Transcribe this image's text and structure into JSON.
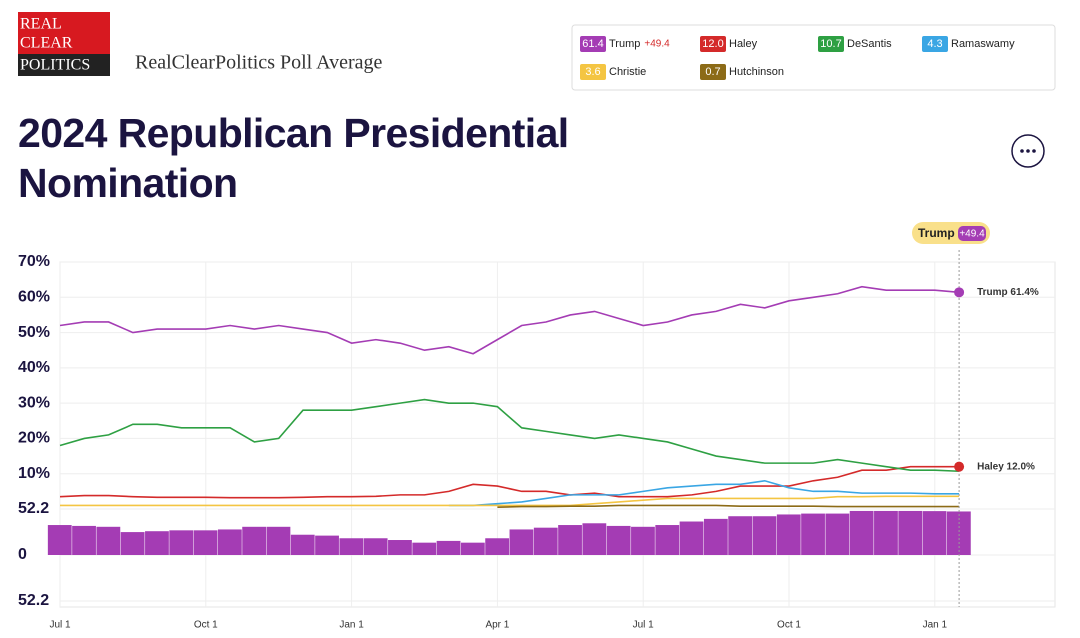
{
  "logo": [
    "REAL",
    "CLEAR",
    "POLITICS"
  ],
  "subtitle": "RealClearPolitics Poll Average",
  "legend": {
    "values": [
      "61.4",
      "12.0",
      "10.7",
      "4.3",
      "3.6",
      "0.7"
    ],
    "spread": "+49.4"
  },
  "badge": {
    "name": "Trump",
    "spread": "+49.4"
  },
  "chart_data": [
    {
      "type": "line",
      "title": "2024 Republican Presidential Nomination",
      "categories": [
        "Jul 1",
        null,
        null,
        null,
        null,
        null,
        "Oct 1",
        null,
        null,
        null,
        null,
        null,
        "Jan 1",
        null,
        null,
        null,
        null,
        null,
        "Apr 1",
        null,
        null,
        null,
        null,
        null,
        "Jul 1",
        null,
        null,
        null,
        null,
        null,
        "Oct 1",
        null,
        null,
        null,
        null,
        null,
        "Jan 1",
        null
      ],
      "series": [
        {
          "name": "Trump",
          "color": "#a43cb4",
          "values": [
            52,
            53,
            53,
            50,
            51,
            51,
            51,
            52,
            51,
            52,
            51,
            50,
            47,
            48,
            47,
            45,
            46,
            44,
            48,
            52,
            53,
            55,
            56,
            54,
            52,
            53,
            55,
            56,
            58,
            57,
            59,
            60,
            61,
            63,
            62,
            62,
            62,
            61.4
          ]
        },
        {
          "name": "Haley",
          "color": "#d42a2a",
          "values": [
            3.5,
            3.8,
            3.8,
            3.5,
            3.3,
            3.3,
            3.3,
            3.2,
            3.2,
            3.2,
            3.3,
            3.5,
            3.5,
            3.6,
            4,
            4,
            5,
            7,
            6.5,
            5,
            5,
            4,
            4.5,
            3.5,
            3.5,
            3.5,
            4,
            5,
            6.5,
            6.5,
            6.5,
            8,
            9,
            11,
            11,
            12,
            12,
            12.0
          ]
        },
        {
          "name": "DeSantis",
          "color": "#2ea043",
          "values": [
            18,
            20,
            21,
            24,
            24,
            23,
            23,
            23,
            19,
            20,
            28,
            28,
            28,
            29,
            30,
            31,
            30,
            30,
            29,
            23,
            22,
            21,
            20,
            21,
            20,
            19,
            17,
            15,
            14,
            13,
            13,
            13,
            14,
            13,
            12,
            11,
            11,
            10.7
          ]
        },
        {
          "name": "Ramaswamy",
          "color": "#3aa6e4",
          "values": [
            null,
            null,
            null,
            null,
            null,
            null,
            null,
            null,
            null,
            null,
            null,
            null,
            null,
            null,
            null,
            null,
            1,
            1,
            1.5,
            2,
            3,
            4,
            4,
            4,
            5,
            6,
            6.5,
            7,
            7,
            8,
            6,
            5,
            5,
            4.5,
            4.5,
            4.5,
            4.3,
            4.3
          ]
        },
        {
          "name": "Christie",
          "color": "#f4c542",
          "values": [
            1,
            1,
            1,
            1,
            1,
            1,
            1,
            1,
            1,
            1,
            1,
            1,
            1,
            1,
            1,
            1,
            1,
            1,
            1,
            1,
            1,
            1,
            1.5,
            2,
            2.5,
            3,
            3,
            3,
            3,
            3,
            3,
            3,
            3.5,
            3.5,
            3.6,
            3.6,
            3.6,
            3.6
          ]
        },
        {
          "name": "Hutchinson",
          "color": "#8c6b17",
          "values": [
            null,
            null,
            null,
            null,
            null,
            null,
            null,
            null,
            null,
            null,
            null,
            null,
            null,
            null,
            null,
            null,
            null,
            null,
            0.5,
            0.7,
            0.7,
            0.8,
            0.8,
            1,
            1,
            1,
            1,
            1,
            0.8,
            0.8,
            0.8,
            0.8,
            0.7,
            0.7,
            0.7,
            0.7,
            0.7,
            0.7
          ]
        }
      ],
      "annotations": [
        "Trump 61.4%",
        "Haley 12.0%"
      ],
      "ylim": [
        0,
        70
      ],
      "yticks": [
        {
          "value": 10,
          "label": "10%"
        },
        {
          "value": 20,
          "label": "20%"
        },
        {
          "value": 30,
          "label": "30%"
        },
        {
          "value": 40,
          "label": "40%"
        },
        {
          "value": 50,
          "label": "50%"
        },
        {
          "value": 60,
          "label": "60%"
        },
        {
          "value": 70,
          "label": "70%"
        }
      ],
      "grid": true
    },
    {
      "type": "bar",
      "color": "#a43cb4",
      "values": [
        34,
        33,
        32,
        26,
        27,
        28,
        28,
        29,
        32,
        32,
        23,
        22,
        19,
        19,
        17,
        14,
        16,
        14,
        19,
        29,
        31,
        34,
        36,
        33,
        32,
        34,
        38,
        41,
        44,
        44,
        46,
        47,
        47,
        50,
        50,
        50,
        49.8,
        49.4
      ],
      "ylim": [
        -52.2,
        52.2
      ],
      "yticks": [
        {
          "value": -52.2,
          "label": "52.2"
        },
        0,
        52.2
      ],
      "grid": true
    }
  ]
}
